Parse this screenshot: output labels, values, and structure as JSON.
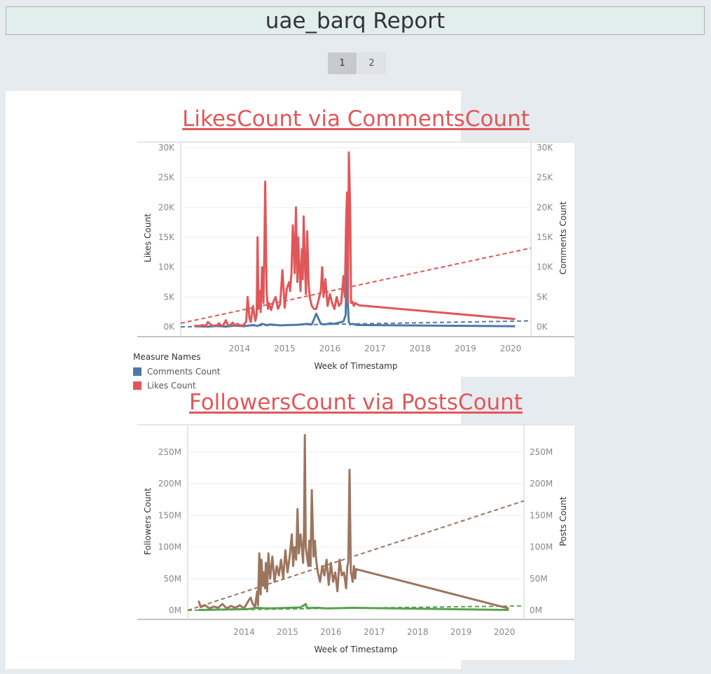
{
  "report": {
    "title": "uae_barq Report"
  },
  "pager": {
    "pages": [
      "1",
      "2"
    ],
    "active": "1"
  },
  "colors": {
    "likes": "#e15759",
    "comments": "#4e79a7",
    "followers": "#9c755f",
    "posts": "#59a14f"
  },
  "chart_data": [
    {
      "type": "line",
      "title": "LikesCount via CommentsCount",
      "xlabel": "Week of Timestamp",
      "ylabel": "Likes Count",
      "y2label": "Comments Count",
      "x_ticks": [
        "2014",
        "2015",
        "2016",
        "2017",
        "2018",
        "2019",
        "2020"
      ],
      "y_ticks": [
        "0K",
        "5K",
        "10K",
        "15K",
        "20K",
        "25K",
        "30K"
      ],
      "y2_ticks": [
        "0K",
        "5K",
        "10K",
        "15K",
        "20K",
        "25K",
        "30K"
      ],
      "ylim": [
        0,
        30000
      ],
      "xlim": [
        2013.2,
        2020.95
      ],
      "legend": {
        "title": "Measure Names",
        "position": "bottom-left",
        "entries": [
          {
            "name": "Comments Count",
            "color": "#4e79a7"
          },
          {
            "name": "Likes Count",
            "color": "#e15759"
          }
        ]
      },
      "series": [
        {
          "name": "Likes Count",
          "color": "#e15759",
          "axis": "left",
          "x": [
            2013.5,
            2013.6,
            2013.7,
            2013.75,
            2013.8,
            2013.9,
            2014.0,
            2014.05,
            2014.1,
            2014.15,
            2014.2,
            2014.25,
            2014.3,
            2014.35,
            2014.4,
            2014.45,
            2014.5,
            2014.55,
            2014.6,
            2014.65,
            2014.68,
            2014.72,
            2014.75,
            2014.8,
            2014.85,
            2014.88,
            2014.9,
            2014.92,
            2014.95,
            2014.97,
            2015.0,
            2015.03,
            2015.05,
            2015.07,
            2015.1,
            2015.13,
            2015.15,
            2015.2,
            2015.25,
            2015.3,
            2015.35,
            2015.4,
            2015.45,
            2015.5,
            2015.55,
            2015.6,
            2015.62,
            2015.65,
            2015.68,
            2015.7,
            2015.72,
            2015.75,
            2015.78,
            2015.8,
            2015.82,
            2015.85,
            2015.88,
            2015.9,
            2015.92,
            2015.95,
            2015.97,
            2016.0,
            2016.03,
            2016.06,
            2016.1,
            2016.15,
            2016.2,
            2016.25,
            2016.3,
            2016.33,
            2016.36,
            2016.4,
            2016.45,
            2016.5,
            2016.55,
            2016.6,
            2016.65,
            2016.7,
            2016.75,
            2016.8,
            2016.83,
            2016.86,
            2016.88,
            2016.9,
            2016.92,
            2016.95,
            2016.97,
            2017.0,
            2017.03,
            2017.06,
            2017.1,
            2017.15,
            2020.6
          ],
          "y": [
            200,
            150,
            300,
            100,
            800,
            200,
            250,
            600,
            150,
            400,
            1100,
            200,
            300,
            700,
            250,
            500,
            300,
            200,
            400,
            900,
            5000,
            1500,
            800,
            3500,
            1000,
            2000,
            15000,
            3000,
            6000,
            2500,
            10000,
            4000,
            13000,
            24300,
            6000,
            3000,
            4000,
            2800,
            4200,
            5000,
            3000,
            3800,
            9500,
            3200,
            6500,
            7500,
            6000,
            9000,
            17000,
            13500,
            9000,
            20000,
            7500,
            15000,
            11000,
            6000,
            13000,
            8000,
            18500,
            10500,
            5500,
            16000,
            7000,
            4800,
            3500,
            3000,
            3000,
            4500,
            6000,
            10000,
            5000,
            8000,
            3500,
            5500,
            4000,
            3000,
            5000,
            3500,
            4000,
            8500,
            5000,
            17500,
            22500,
            4000,
            29200,
            20000,
            4000,
            4200,
            3500,
            4000,
            3800,
            3600,
            1300
          ]
        },
        {
          "name": "Comments Count",
          "color": "#4e79a7",
          "axis": "right",
          "x": [
            2013.5,
            2013.8,
            2014.0,
            2014.2,
            2014.4,
            2014.6,
            2014.8,
            2014.9,
            2015.0,
            2015.1,
            2015.2,
            2015.4,
            2015.6,
            2015.8,
            2016.0,
            2016.1,
            2016.2,
            2016.3,
            2016.4,
            2016.5,
            2016.6,
            2016.7,
            2016.8,
            2016.85,
            2016.88,
            2016.9,
            2016.92,
            2016.95,
            2017.0,
            2017.1,
            2020.6
          ],
          "y": [
            100,
            50,
            150,
            50,
            200,
            100,
            300,
            150,
            500,
            300,
            400,
            250,
            300,
            350,
            500,
            400,
            2200,
            500,
            400,
            600,
            500,
            700,
            900,
            2000,
            14000,
            3500,
            800,
            400,
            500,
            300,
            100
          ]
        }
      ],
      "trend_lines": [
        {
          "series": "Likes Count",
          "style": "dashed",
          "x": [
            2013.2,
            2020.95
          ],
          "y": [
            600,
            13200
          ]
        },
        {
          "series": "Comments Count",
          "style": "dashed",
          "x": [
            2013.2,
            2020.95
          ],
          "y": [
            0,
            1000
          ]
        }
      ]
    },
    {
      "type": "line",
      "title": "FollowersCount via PostsCount",
      "xlabel": "Week of Timestamp",
      "ylabel": "Followers Count",
      "y2label": "Posts Count",
      "x_ticks": [
        "2014",
        "2015",
        "2016",
        "2017",
        "2018",
        "2019",
        "2020"
      ],
      "y_ticks": [
        "0M",
        "50M",
        "100M",
        "150M",
        "200M",
        "250M"
      ],
      "y2_ticks": [
        "0M",
        "50M",
        "100M",
        "150M",
        "200M",
        "250M"
      ],
      "ylim": [
        0,
        280000000
      ],
      "xlim": [
        2013.2,
        2020.95
      ],
      "series": [
        {
          "name": "Followers Count",
          "color": "#9c755f",
          "axis": "left",
          "x": [
            2013.45,
            2013.5,
            2013.6,
            2013.7,
            2013.8,
            2013.9,
            2014.0,
            2014.1,
            2014.2,
            2014.3,
            2014.4,
            2014.5,
            2014.6,
            2014.65,
            2014.7,
            2014.75,
            2014.8,
            2014.82,
            2014.85,
            2014.88,
            2014.9,
            2014.93,
            2014.95,
            2014.98,
            2015.0,
            2015.03,
            2015.06,
            2015.1,
            2015.15,
            2015.2,
            2015.25,
            2015.3,
            2015.35,
            2015.4,
            2015.45,
            2015.5,
            2015.55,
            2015.6,
            2015.63,
            2015.66,
            2015.7,
            2015.73,
            2015.76,
            2015.8,
            2015.83,
            2015.86,
            2015.88,
            2015.9,
            2015.92,
            2015.95,
            2015.98,
            2016.0,
            2016.03,
            2016.06,
            2016.1,
            2016.13,
            2016.16,
            2016.2,
            2016.25,
            2016.3,
            2016.35,
            2016.4,
            2016.45,
            2016.5,
            2016.55,
            2016.6,
            2016.65,
            2016.7,
            2016.75,
            2016.8,
            2016.85,
            2016.88,
            2016.9,
            2016.93,
            2016.96,
            2016.98,
            2017.0,
            2017.03,
            2017.06,
            2017.08,
            2020.6
          ],
          "y": [
            15000000,
            5000000,
            8000000,
            3000000,
            6000000,
            4000000,
            10000000,
            3000000,
            7000000,
            4000000,
            8000000,
            3000000,
            15000000,
            20000000,
            10000000,
            5000000,
            30000000,
            8000000,
            90000000,
            25000000,
            80000000,
            40000000,
            60000000,
            35000000,
            75000000,
            30000000,
            90000000,
            50000000,
            85000000,
            45000000,
            70000000,
            55000000,
            80000000,
            50000000,
            95000000,
            60000000,
            85000000,
            120000000,
            70000000,
            100000000,
            80000000,
            160000000,
            90000000,
            120000000,
            100000000,
            75000000,
            130000000,
            277000000,
            100000000,
            85000000,
            70000000,
            110000000,
            70000000,
            190000000,
            85000000,
            110000000,
            80000000,
            60000000,
            45000000,
            70000000,
            55000000,
            80000000,
            40000000,
            75000000,
            45000000,
            60000000,
            30000000,
            80000000,
            55000000,
            60000000,
            35000000,
            70000000,
            75000000,
            222000000,
            60000000,
            55000000,
            45000000,
            70000000,
            50000000,
            65000000,
            3000000
          ]
        },
        {
          "name": "Posts Count",
          "color": "#59a14f",
          "axis": "right",
          "x": [
            2013.45,
            2013.8,
            2014.2,
            2014.6,
            2014.8,
            2015.0,
            2015.4,
            2015.8,
            2015.92,
            2015.95,
            2016.2,
            2016.4,
            2016.8,
            2017.0,
            2020.6
          ],
          "y": [
            500000,
            1000000,
            1500000,
            2000000,
            4000000,
            3000000,
            3500000,
            4500000,
            10000000,
            3500000,
            4000000,
            3000000,
            3500000,
            4000000,
            500000
          ]
        }
      ],
      "trend_lines": [
        {
          "series": "Followers Count",
          "style": "dashed",
          "x": [
            2013.2,
            2020.95
          ],
          "y": [
            0,
            173000000
          ]
        },
        {
          "series": "Posts Count",
          "style": "dashed",
          "x": [
            2013.2,
            2020.95
          ],
          "y": [
            0,
            7000000
          ]
        }
      ]
    }
  ]
}
